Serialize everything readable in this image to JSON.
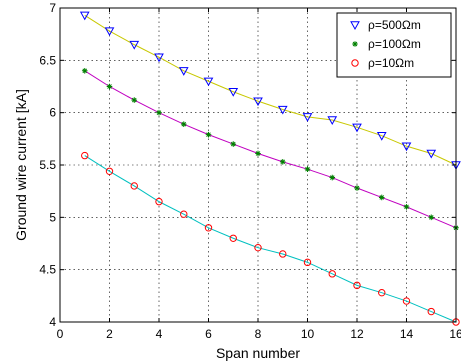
{
  "chart_data": {
    "type": "line",
    "title": "",
    "xlabel": "Span number",
    "ylabel": "Ground wire current [kA]",
    "xlim": [
      0,
      16
    ],
    "ylim": [
      4,
      7
    ],
    "xticks": [
      0,
      2,
      4,
      6,
      8,
      10,
      12,
      14,
      16
    ],
    "yticks": [
      4,
      4.5,
      5,
      5.5,
      6,
      6.5,
      7
    ],
    "xtick_labels": [
      "0",
      "2",
      "4",
      "6",
      "8",
      "10",
      "12",
      "14",
      "16"
    ],
    "ytick_labels": [
      "4",
      "4.5",
      "5",
      "5.5",
      "6",
      "6.5",
      "7"
    ],
    "grid": true,
    "legend_position": "top-right",
    "x": [
      1,
      2,
      3,
      4,
      5,
      6,
      7,
      8,
      9,
      10,
      11,
      12,
      13,
      14,
      15,
      16
    ],
    "series": [
      {
        "name": "ρ=500Ωm",
        "marker": "triangle-down",
        "marker_color": "#0000ff",
        "line_color": "#c8c800",
        "values": [
          6.93,
          6.78,
          6.65,
          6.53,
          6.4,
          6.3,
          6.2,
          6.11,
          6.03,
          5.96,
          5.93,
          5.86,
          5.78,
          5.68,
          5.61,
          5.5
        ]
      },
      {
        "name": "ρ=100Ωm",
        "marker": "asterisk",
        "marker_color": "#008000",
        "line_color": "#c000c0",
        "values": [
          6.4,
          6.25,
          6.12,
          6.0,
          5.89,
          5.79,
          5.7,
          5.61,
          5.53,
          5.46,
          5.38,
          5.28,
          5.19,
          5.1,
          5.0,
          4.9
        ]
      },
      {
        "name": "ρ=10Ωm",
        "marker": "circle",
        "marker_color": "#ff0000",
        "line_color": "#00c0c0",
        "values": [
          5.59,
          5.44,
          5.3,
          5.15,
          5.03,
          4.9,
          4.8,
          4.71,
          4.65,
          4.57,
          4.46,
          4.35,
          4.28,
          4.2,
          4.1,
          4.0
        ]
      }
    ]
  }
}
